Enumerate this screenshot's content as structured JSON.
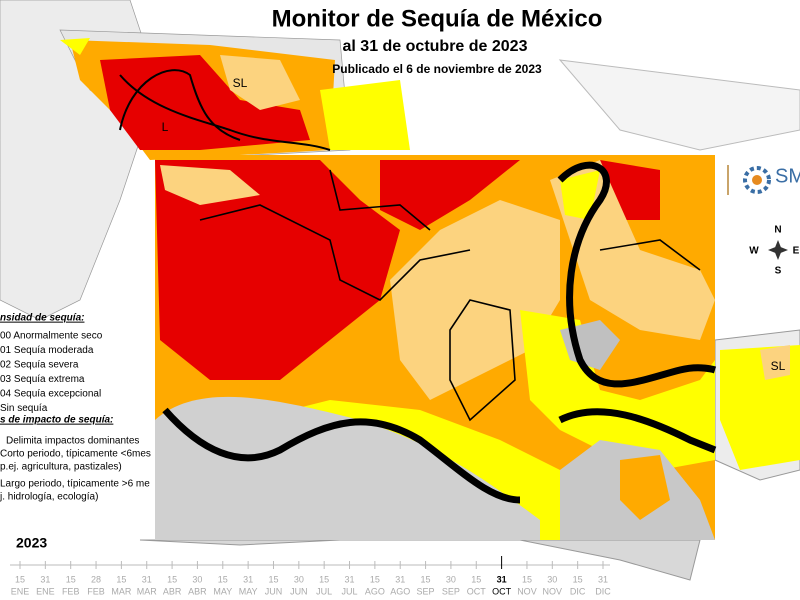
{
  "header": {
    "title": "Monitor de Sequía de México",
    "subtitle": "al 31 de octubre de 2023",
    "published": "Publicado el 6 de noviembre de 2023"
  },
  "map_labels": [
    "SL",
    "L",
    "SL"
  ],
  "logo": "SM",
  "compass": {
    "north": "N",
    "south": "S",
    "east": "E",
    "west": "W"
  },
  "legend": {
    "intensity_title": "nsidad de sequía:",
    "intensity_items": [
      "00 Anormalmente seco",
      "01 Sequía moderada",
      "02 Sequía severa",
      "03 Sequía extrema",
      "04 Sequía excepcional",
      "Sin sequía"
    ],
    "impact_title": "s de impacto de sequía:",
    "impact_items": [
      "Delimita impactos dominantes",
      "Corto periodo, típicamente <6mes",
      "p.ej. agricultura, pastizales)",
      "Largo periodo, típicamente >6 me",
      "j. hidrología, ecología)"
    ]
  },
  "timeline": {
    "year": "2023",
    "ticks": [
      {
        "day": "15",
        "month": "ENE"
      },
      {
        "day": "31",
        "month": "ENE"
      },
      {
        "day": "15",
        "month": "FEB"
      },
      {
        "day": "28",
        "month": "FEB"
      },
      {
        "day": "15",
        "month": "MAR"
      },
      {
        "day": "31",
        "month": "MAR"
      },
      {
        "day": "15",
        "month": "ABR"
      },
      {
        "day": "30",
        "month": "ABR"
      },
      {
        "day": "15",
        "month": "MAY"
      },
      {
        "day": "31",
        "month": "MAY"
      },
      {
        "day": "15",
        "month": "JUN"
      },
      {
        "day": "30",
        "month": "JUN"
      },
      {
        "day": "15",
        "month": "JUL"
      },
      {
        "day": "31",
        "month": "JUL"
      },
      {
        "day": "15",
        "month": "AGO"
      },
      {
        "day": "31",
        "month": "AGO"
      },
      {
        "day": "15",
        "month": "SEP"
      },
      {
        "day": "30",
        "month": "SEP"
      },
      {
        "day": "15",
        "month": "OCT"
      },
      {
        "day": "31",
        "month": "OCT",
        "current": true
      },
      {
        "day": "15",
        "month": "NOV"
      },
      {
        "day": "30",
        "month": "NOV"
      },
      {
        "day": "15",
        "month": "DIC"
      },
      {
        "day": "31",
        "month": "DIC"
      }
    ]
  }
}
